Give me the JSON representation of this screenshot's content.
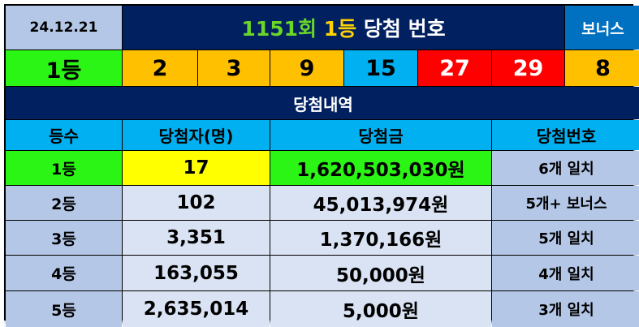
{
  "header": {
    "date": "24.12.21",
    "title_round": "1151회",
    "title_rank": "1등",
    "title_rest": "당첨 번호",
    "bonus_label": "보너스"
  },
  "numbers_row": {
    "rank_label": "1등",
    "numbers": [
      "2",
      "3",
      "9",
      "15",
      "27",
      "29"
    ],
    "bonus": "8"
  },
  "section_title": "당첨내역",
  "table": {
    "columns": [
      "등수",
      "당첨자(명)",
      "당첨금",
      "당첨번호"
    ],
    "rows": [
      {
        "rank": "1등",
        "winners": "17",
        "prize": "1,620,503,030원",
        "match": "6개 일치"
      },
      {
        "rank": "2등",
        "winners": "102",
        "prize": "45,013,974원",
        "match": "5개+ 보너스"
      },
      {
        "rank": "3등",
        "winners": "3,351",
        "prize": "1,370,166원",
        "match": "5개 일치"
      },
      {
        "rank": "4등",
        "winners": "163,055",
        "prize": "50,000원",
        "match": "4개 일치"
      },
      {
        "rank": "5등",
        "winners": "2,635,014",
        "prize": "5,000원",
        "match": "3개 일치"
      }
    ]
  },
  "colors": {
    "navy": "#002060",
    "green": "#2bf514",
    "yellow_ball": "#ffc000",
    "blue_ball": "#00b0f0",
    "red_ball": "#ff0000",
    "light_blue": "#b4c7e7",
    "pale_blue": "#dae3f3",
    "highlight_yellow": "#ffff00"
  }
}
